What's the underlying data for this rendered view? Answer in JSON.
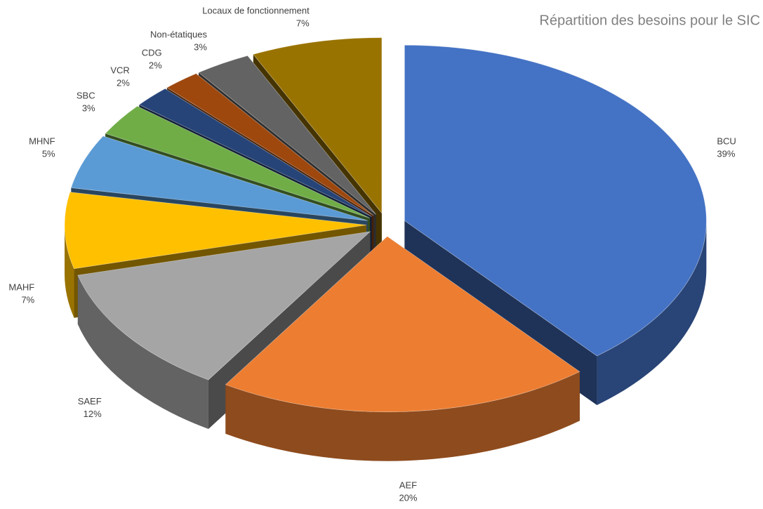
{
  "chart_data": {
    "type": "pie3d",
    "title": "Répartition des besoins pour le SIC",
    "categories": [
      "BCU",
      "AEF",
      "SAEF",
      "MAHF",
      "MHNF",
      "SBC",
      "VCR",
      "CDG",
      "Non-étatiques",
      "Locaux de fonctionnement"
    ],
    "values": [
      39,
      20,
      12,
      7,
      5,
      3,
      2,
      2,
      3,
      7
    ],
    "value_labels": [
      "39%",
      "20%",
      "12%",
      "7%",
      "5%",
      "3%",
      "2%",
      "2%",
      "3%",
      "7%"
    ],
    "colors": [
      "#4472c4",
      "#ed7d31",
      "#a5a5a5",
      "#ffc000",
      "#5b9bd5",
      "#70ad47",
      "#264478",
      "#9e480e",
      "#636363",
      "#997300"
    ]
  }
}
